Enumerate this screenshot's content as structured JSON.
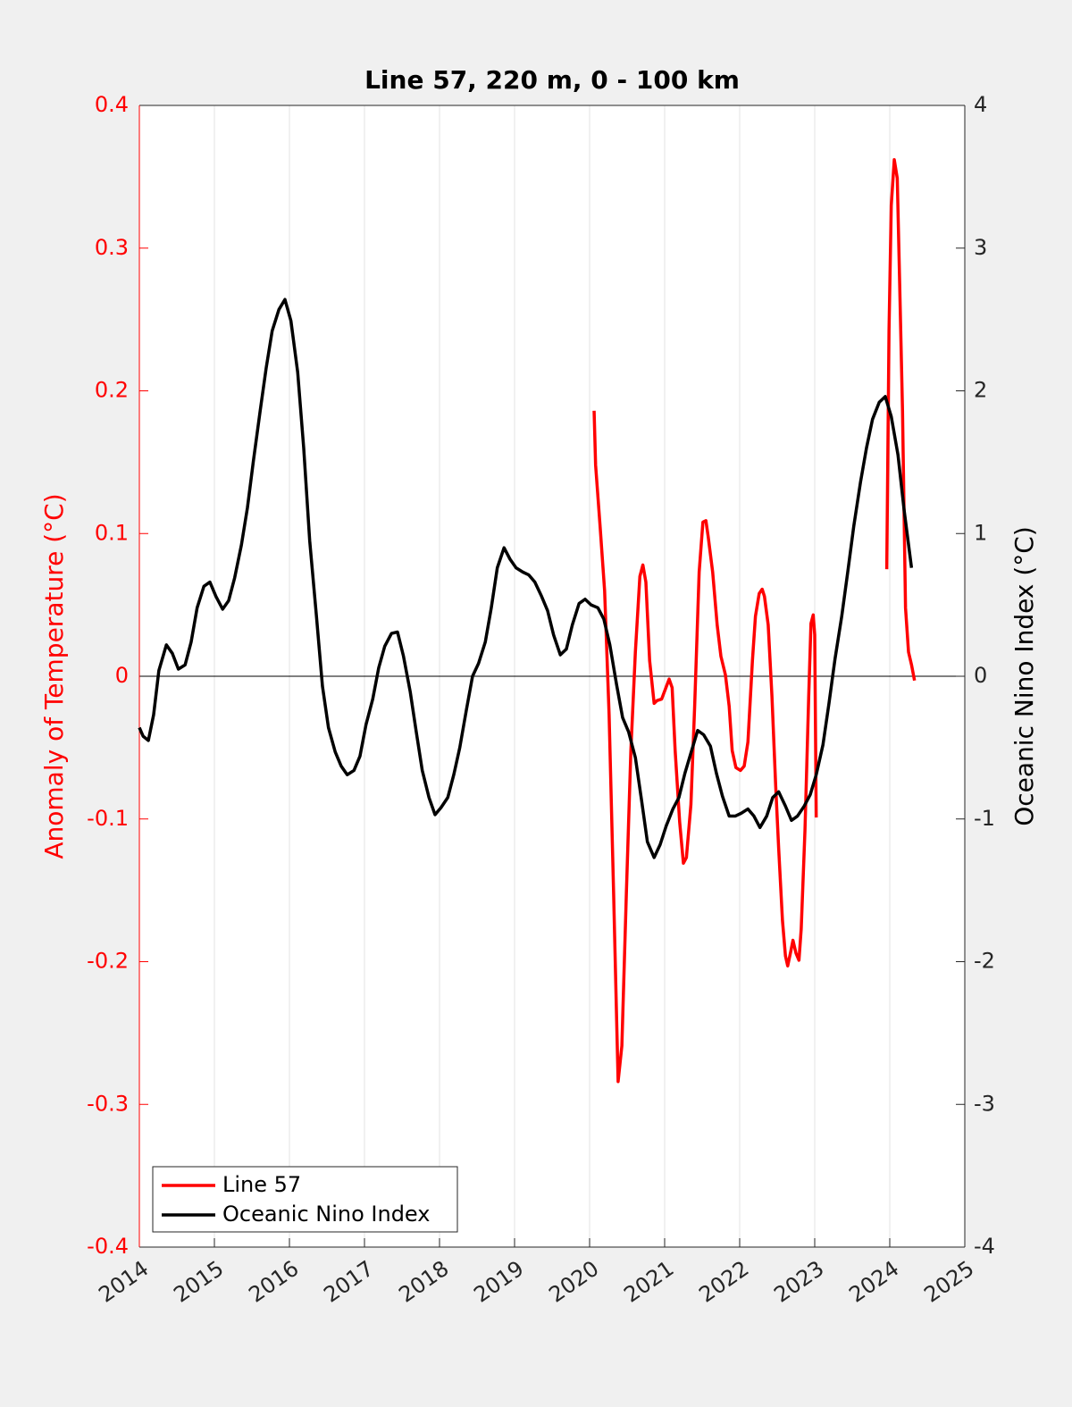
{
  "chart_data": {
    "type": "line",
    "title": "Line 57, 220 m, 0 - 100 km",
    "y_label": "Anomaly of Temperature (°C)",
    "y2_label": "Oceanic Nino Index (°C)",
    "xlim": [
      2014,
      2025
    ],
    "xticks": [
      2014,
      2015,
      2016,
      2017,
      2018,
      2019,
      2020,
      2021,
      2022,
      2023,
      2024,
      2025
    ],
    "ylim": [
      -0.4,
      0.4
    ],
    "yticks": [
      -0.4,
      -0.3,
      -0.2,
      -0.1,
      0,
      0.1,
      0.2,
      0.3,
      0.4
    ],
    "y2lim": [
      -4,
      4
    ],
    "y2ticks": [
      -4,
      -3,
      -2,
      -1,
      0,
      1,
      2,
      3,
      4
    ],
    "grid": true,
    "legend": "lower left",
    "series": [
      {
        "name": "Line 57",
        "color": "#ff0000",
        "axis": "y",
        "x": [
          2020.06,
          2020.08,
          2020.14,
          2020.2,
          2020.26,
          2020.32,
          2020.38,
          2020.43,
          2020.49,
          2020.55,
          2020.61,
          2020.67,
          2020.71,
          2020.75,
          2020.8,
          2020.86,
          2020.9,
          2020.96,
          2021.01,
          2021.06,
          2021.1,
          2021.14,
          2021.2,
          2021.25,
          2021.29,
          2021.35,
          2021.4,
          2021.46,
          2021.51,
          2021.55,
          2021.58,
          2021.64,
          2021.7,
          2021.75,
          2021.81,
          2021.86,
          2021.9,
          2021.95,
          2022.01,
          2022.06,
          2022.11,
          2022.17,
          2022.21,
          2022.26,
          2022.3,
          2022.33,
          2022.38,
          2022.43,
          2022.48,
          2022.52,
          2022.57,
          2022.61,
          2022.64,
          2022.68,
          2022.71,
          2022.75,
          2022.79,
          2022.82,
          2022.87,
          2022.92,
          2022.95,
          2022.98,
          2023.0,
          2023.02,
          null,
          2023.96,
          2023.99,
          2024.02,
          2024.06,
          2024.1,
          2024.13,
          2024.17,
          2024.21,
          2024.25,
          2024.29,
          2024.33
        ],
        "values": [
          0.186,
          0.148,
          0.105,
          0.06,
          -0.027,
          -0.152,
          -0.284,
          -0.259,
          -0.152,
          -0.052,
          0.017,
          0.07,
          0.078,
          0.066,
          0.011,
          -0.019,
          -0.017,
          -0.016,
          -0.009,
          -0.002,
          -0.008,
          -0.052,
          -0.102,
          -0.131,
          -0.127,
          -0.09,
          -0.021,
          0.073,
          0.108,
          0.109,
          0.098,
          0.073,
          0.036,
          0.014,
          0.001,
          -0.021,
          -0.052,
          -0.064,
          -0.066,
          -0.063,
          -0.046,
          0.011,
          0.042,
          0.058,
          0.061,
          0.056,
          0.036,
          -0.014,
          -0.077,
          -0.121,
          -0.171,
          -0.196,
          -0.203,
          -0.193,
          -0.185,
          -0.194,
          -0.199,
          -0.177,
          -0.108,
          -0.014,
          0.037,
          0.043,
          0.029,
          -0.099,
          null,
          0.075,
          0.242,
          0.33,
          0.362,
          0.349,
          0.28,
          0.186,
          0.048,
          0.017,
          0.008,
          -0.003
        ]
      },
      {
        "name": "Oceanic Nino Index",
        "color": "#000000",
        "axis": "y2",
        "x": [
          2014.0,
          2014.05,
          2014.12,
          2014.19,
          2014.26,
          2014.36,
          2014.44,
          2014.52,
          2014.61,
          2014.69,
          2014.77,
          2014.86,
          2014.94,
          2015.02,
          2015.11,
          2015.19,
          2015.27,
          2015.36,
          2015.44,
          2015.52,
          2015.61,
          2015.69,
          2015.77,
          2015.86,
          2015.94,
          2016.02,
          2016.11,
          2016.19,
          2016.27,
          2016.36,
          2016.44,
          2016.52,
          2016.61,
          2016.69,
          2016.77,
          2016.86,
          2016.94,
          2017.02,
          2017.11,
          2017.19,
          2017.27,
          2017.36,
          2017.44,
          2017.52,
          2017.61,
          2017.69,
          2017.77,
          2017.86,
          2017.94,
          2018.02,
          2018.11,
          2018.19,
          2018.27,
          2018.36,
          2018.44,
          2018.52,
          2018.61,
          2018.69,
          2018.77,
          2018.86,
          2018.94,
          2019.02,
          2019.11,
          2019.19,
          2019.27,
          2019.36,
          2019.44,
          2019.52,
          2019.61,
          2019.69,
          2019.77,
          2019.86,
          2019.94,
          2020.02,
          2020.11,
          2020.19,
          2020.27,
          2020.36,
          2020.44,
          2020.52,
          2020.61,
          2020.69,
          2020.77,
          2020.86,
          2020.94,
          2021.02,
          2021.11,
          2021.19,
          2021.27,
          2021.36,
          2021.44,
          2021.52,
          2021.61,
          2021.69,
          2021.77,
          2021.86,
          2021.94,
          2022.02,
          2022.11,
          2022.19,
          2022.27,
          2022.36,
          2022.44,
          2022.52,
          2022.61,
          2022.69,
          2022.77,
          2022.86,
          2022.94,
          2023.02,
          2023.11,
          2023.19,
          2023.27,
          2023.36,
          2023.44,
          2023.52,
          2023.61,
          2023.69,
          2023.77,
          2023.86,
          2023.94,
          2024.02,
          2024.11,
          2024.19,
          2024.29
        ],
        "values": [
          -0.36,
          -0.42,
          -0.45,
          -0.27,
          0.04,
          0.22,
          0.16,
          0.05,
          0.08,
          0.24,
          0.48,
          0.63,
          0.66,
          0.56,
          0.47,
          0.53,
          0.69,
          0.92,
          1.18,
          1.51,
          1.86,
          2.16,
          2.42,
          2.57,
          2.64,
          2.49,
          2.13,
          1.6,
          0.95,
          0.42,
          -0.07,
          -0.36,
          -0.53,
          -0.63,
          -0.69,
          -0.66,
          -0.56,
          -0.34,
          -0.16,
          0.06,
          0.21,
          0.3,
          0.31,
          0.14,
          -0.11,
          -0.39,
          -0.66,
          -0.85,
          -0.97,
          -0.92,
          -0.85,
          -0.69,
          -0.5,
          -0.23,
          0,
          0.09,
          0.24,
          0.48,
          0.76,
          0.9,
          0.82,
          0.76,
          0.73,
          0.71,
          0.66,
          0.56,
          0.46,
          0.29,
          0.15,
          0.19,
          0.36,
          0.51,
          0.54,
          0.5,
          0.48,
          0.4,
          0.22,
          -0.06,
          -0.29,
          -0.39,
          -0.57,
          -0.86,
          -1.16,
          -1.27,
          -1.18,
          -1.05,
          -0.93,
          -0.85,
          -0.68,
          -0.52,
          -0.38,
          -0.41,
          -0.49,
          -0.68,
          -0.84,
          -0.98,
          -0.98,
          -0.96,
          -0.93,
          -0.98,
          -1.06,
          -0.98,
          -0.85,
          -0.81,
          -0.91,
          -1.01,
          -0.98,
          -0.91,
          -0.83,
          -0.69,
          -0.48,
          -0.19,
          0.12,
          0.42,
          0.73,
          1.05,
          1.36,
          1.6,
          1.8,
          1.92,
          1.96,
          1.82,
          1.55,
          1.17,
          0.76
        ]
      }
    ]
  }
}
